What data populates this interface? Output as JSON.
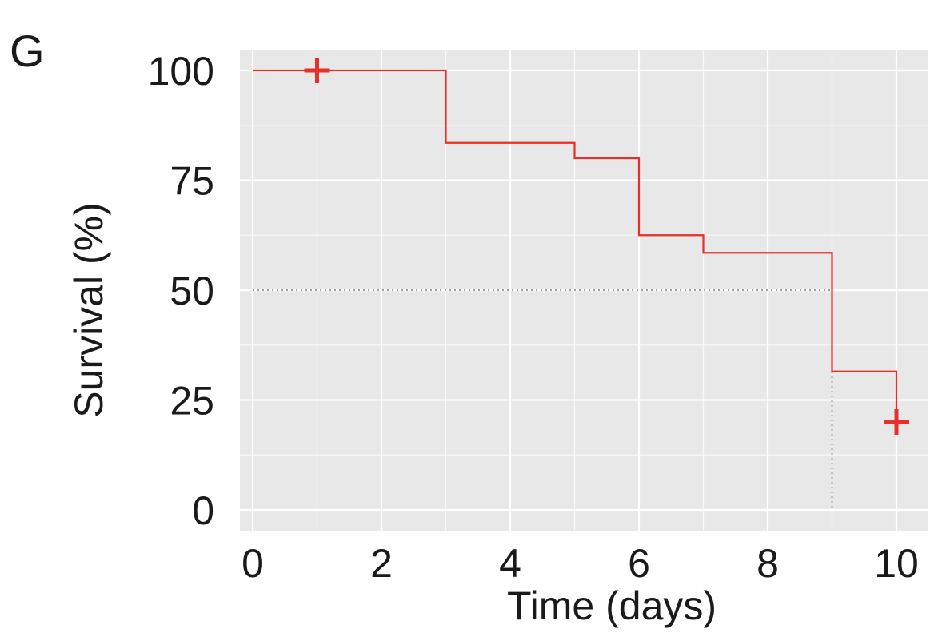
{
  "panel_label": "G",
  "chart_data": {
    "type": "line",
    "subtype": "kaplan-meier-step",
    "xlabel": "Time (days)",
    "ylabel": "Survival (%)",
    "xlim": [
      0,
      10
    ],
    "ylim": [
      0,
      100
    ],
    "x_ticks": [
      0,
      2,
      4,
      6,
      8,
      10
    ],
    "y_ticks": [
      0,
      25,
      50,
      75,
      100
    ],
    "grid": true,
    "background_color": "#e8e8e8",
    "grid_color": "#ffffff",
    "series": [
      {
        "color": "#e8302a",
        "x": [
          0,
          3,
          3,
          5,
          5,
          6,
          6,
          7,
          7,
          9,
          9,
          10,
          10
        ],
        "y": [
          100,
          100,
          83.5,
          83.5,
          80,
          80,
          62.5,
          62.5,
          58.5,
          58.5,
          31.5,
          31.5,
          20
        ],
        "censor_marks": [
          {
            "x": 1,
            "y": 100
          },
          {
            "x": 10,
            "y": 20
          }
        ]
      }
    ],
    "median_reference": {
      "y": 50,
      "x": 9,
      "style": "dotted",
      "color": "#a0a0a0"
    }
  }
}
